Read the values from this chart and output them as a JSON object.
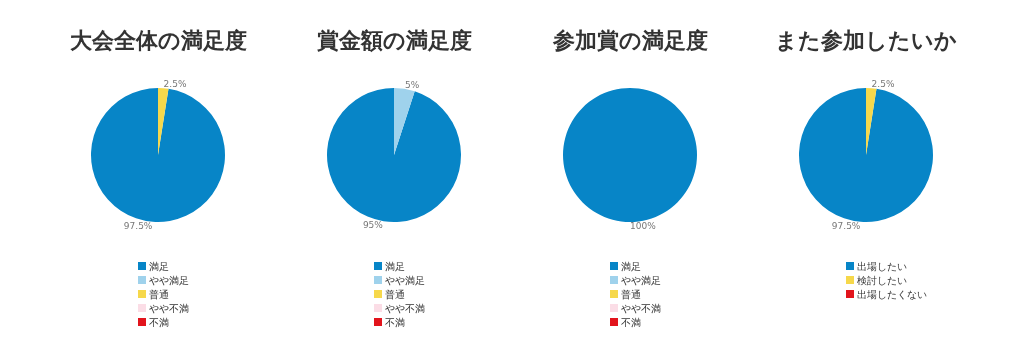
{
  "chart_data": [
    {
      "type": "pie",
      "title": "大会全体の満足度",
      "categories": [
        "満足",
        "やや満足",
        "普通",
        "やや不満",
        "不満"
      ],
      "values": [
        97.5,
        0,
        2.5,
        0,
        0
      ],
      "value_labels": [
        "97.5%",
        null,
        "2.5%",
        null,
        null
      ],
      "colors": [
        "#0785c7",
        "#9fd2ec",
        "#f6d84b",
        "#fbdde6",
        "#e2141c"
      ],
      "legend": "bottom"
    },
    {
      "type": "pie",
      "title": "賞金額の満足度",
      "categories": [
        "満足",
        "やや満足",
        "普通",
        "やや不満",
        "不満"
      ],
      "values": [
        95,
        5,
        0,
        0,
        0
      ],
      "value_labels": [
        "95%",
        "5%",
        null,
        null,
        null
      ],
      "colors": [
        "#0785c7",
        "#9fd2ec",
        "#f6d84b",
        "#fbdde6",
        "#e2141c"
      ],
      "legend": "bottom"
    },
    {
      "type": "pie",
      "title": "参加賞の満足度",
      "categories": [
        "満足",
        "やや満足",
        "普通",
        "やや不満",
        "不満"
      ],
      "values": [
        100,
        0,
        0,
        0,
        0
      ],
      "value_labels": [
        "100%",
        null,
        null,
        null,
        null
      ],
      "colors": [
        "#0785c7",
        "#9fd2ec",
        "#f6d84b",
        "#fbdde6",
        "#e2141c"
      ],
      "legend": "bottom"
    },
    {
      "type": "pie",
      "title": "また参加したいか",
      "categories": [
        "出場したい",
        "検討したい",
        "出場したくない"
      ],
      "values": [
        97.5,
        2.5,
        0
      ],
      "value_labels": [
        "97.5%",
        "2.5%",
        null
      ],
      "colors": [
        "#0785c7",
        "#f6d84b",
        "#e2141c"
      ],
      "legend": "bottom"
    }
  ]
}
